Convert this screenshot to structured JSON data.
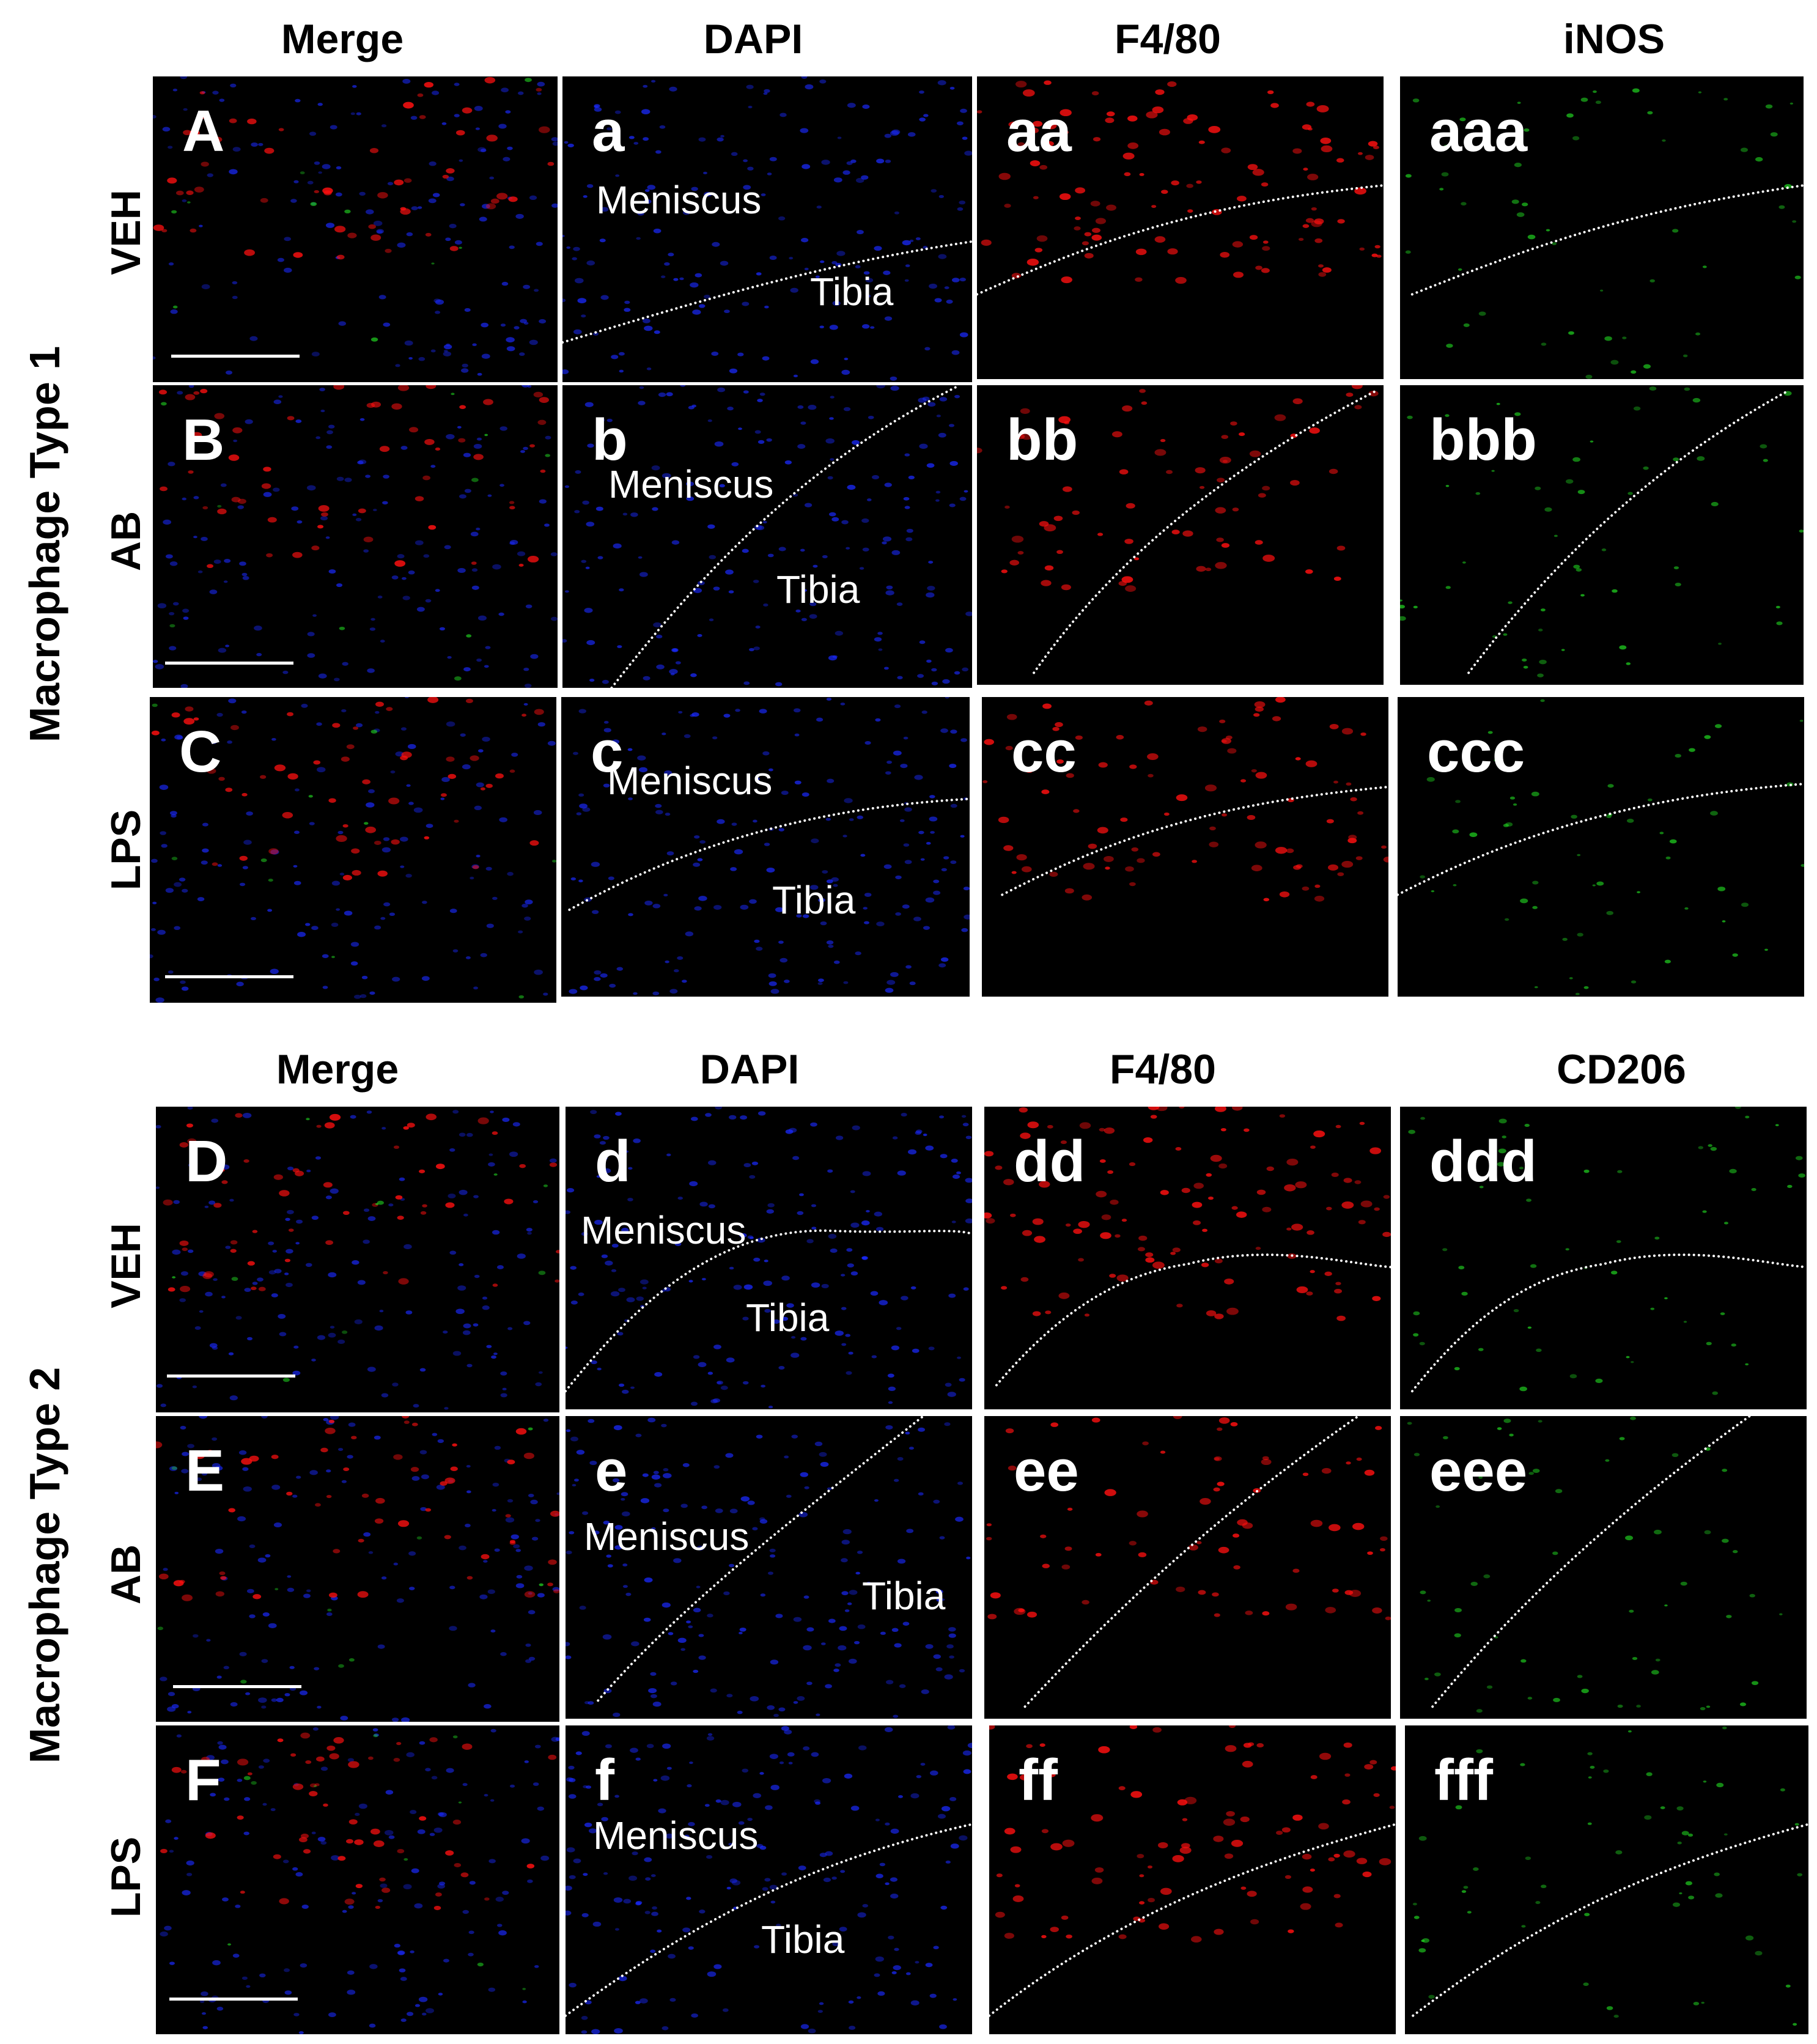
{
  "groups": [
    {
      "label": "Macrophage Type 1",
      "columns": [
        "Merge",
        "DAPI",
        "F4/80",
        "iNOS"
      ],
      "rows": [
        {
          "label": "VEH",
          "panels": [
            "A",
            "a",
            "aa",
            "aaa"
          ]
        },
        {
          "label": "AB",
          "panels": [
            "B",
            "b",
            "bb",
            "bbb"
          ]
        },
        {
          "label": "LPS",
          "panels": [
            "C",
            "c",
            "cc",
            "ccc"
          ]
        }
      ]
    },
    {
      "label": "Macrophage Type 2",
      "columns": [
        "Merge",
        "DAPI",
        "F4/80",
        "CD206"
      ],
      "rows": [
        {
          "label": "VEH",
          "panels": [
            "D",
            "d",
            "dd",
            "ddd"
          ]
        },
        {
          "label": "AB",
          "panels": [
            "E",
            "e",
            "ee",
            "eee"
          ]
        },
        {
          "label": "LPS",
          "panels": [
            "F",
            "f",
            "ff",
            "fff"
          ]
        }
      ]
    }
  ],
  "anatomy": {
    "upper": "Meniscus",
    "lower": "Tibia"
  },
  "colors": {
    "dapi": "#1a2aff",
    "f480": "#ff1010",
    "marker": "#22dd22",
    "background": "#000000"
  }
}
